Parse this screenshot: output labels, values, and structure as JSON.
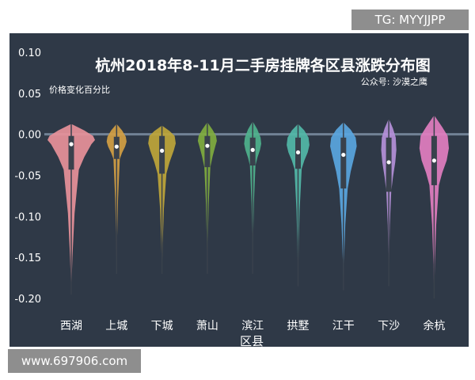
{
  "watermarks": {
    "top": "TG: MYYJJPP",
    "bottom": "www.697906.com"
  },
  "chart_data": {
    "type": "violin",
    "title": "杭州2018年8-11月二手房挂牌各区县涨跌分布图",
    "subtitle": "公众号: 沙漠之鹰",
    "ylabel": "价格变化百分比",
    "xlabel": "区县",
    "ylim": [
      -0.2,
      0.1
    ],
    "yticks": [
      "0.10",
      "0.05",
      "0.00",
      "-0.05",
      "-0.10",
      "-0.15",
      "-0.20"
    ],
    "grid": false,
    "categories": [
      "西湖",
      "上城",
      "下城",
      "萧山",
      "滨江",
      "拱墅",
      "江干",
      "下沙",
      "余杭"
    ],
    "colors": [
      "#e8919a",
      "#d4a043",
      "#bfa639",
      "#80ac3f",
      "#4fb28d",
      "#52b8a8",
      "#5aa6df",
      "#b590d9",
      "#e27ec0"
    ],
    "series": [
      {
        "median": -0.012,
        "q1": -0.043,
        "q3": -0.002,
        "min": -0.195,
        "max": 0.012
      },
      {
        "median": -0.015,
        "q1": -0.03,
        "q3": -0.003,
        "min": -0.17,
        "max": 0.012
      },
      {
        "median": -0.02,
        "q1": -0.048,
        "q3": -0.002,
        "min": -0.17,
        "max": 0.01
      },
      {
        "median": -0.014,
        "q1": -0.04,
        "q3": -0.002,
        "min": -0.17,
        "max": 0.014
      },
      {
        "median": -0.019,
        "q1": -0.038,
        "q3": -0.004,
        "min": -0.17,
        "max": 0.015
      },
      {
        "median": -0.022,
        "q1": -0.042,
        "q3": -0.004,
        "min": -0.185,
        "max": 0.012
      },
      {
        "median": -0.025,
        "q1": -0.066,
        "q3": -0.004,
        "min": -0.19,
        "max": 0.014
      },
      {
        "median": -0.034,
        "q1": -0.07,
        "q3": -0.004,
        "min": -0.185,
        "max": 0.018
      },
      {
        "median": -0.032,
        "q1": -0.062,
        "q3": -0.002,
        "min": -0.2,
        "max": 0.022
      }
    ]
  }
}
